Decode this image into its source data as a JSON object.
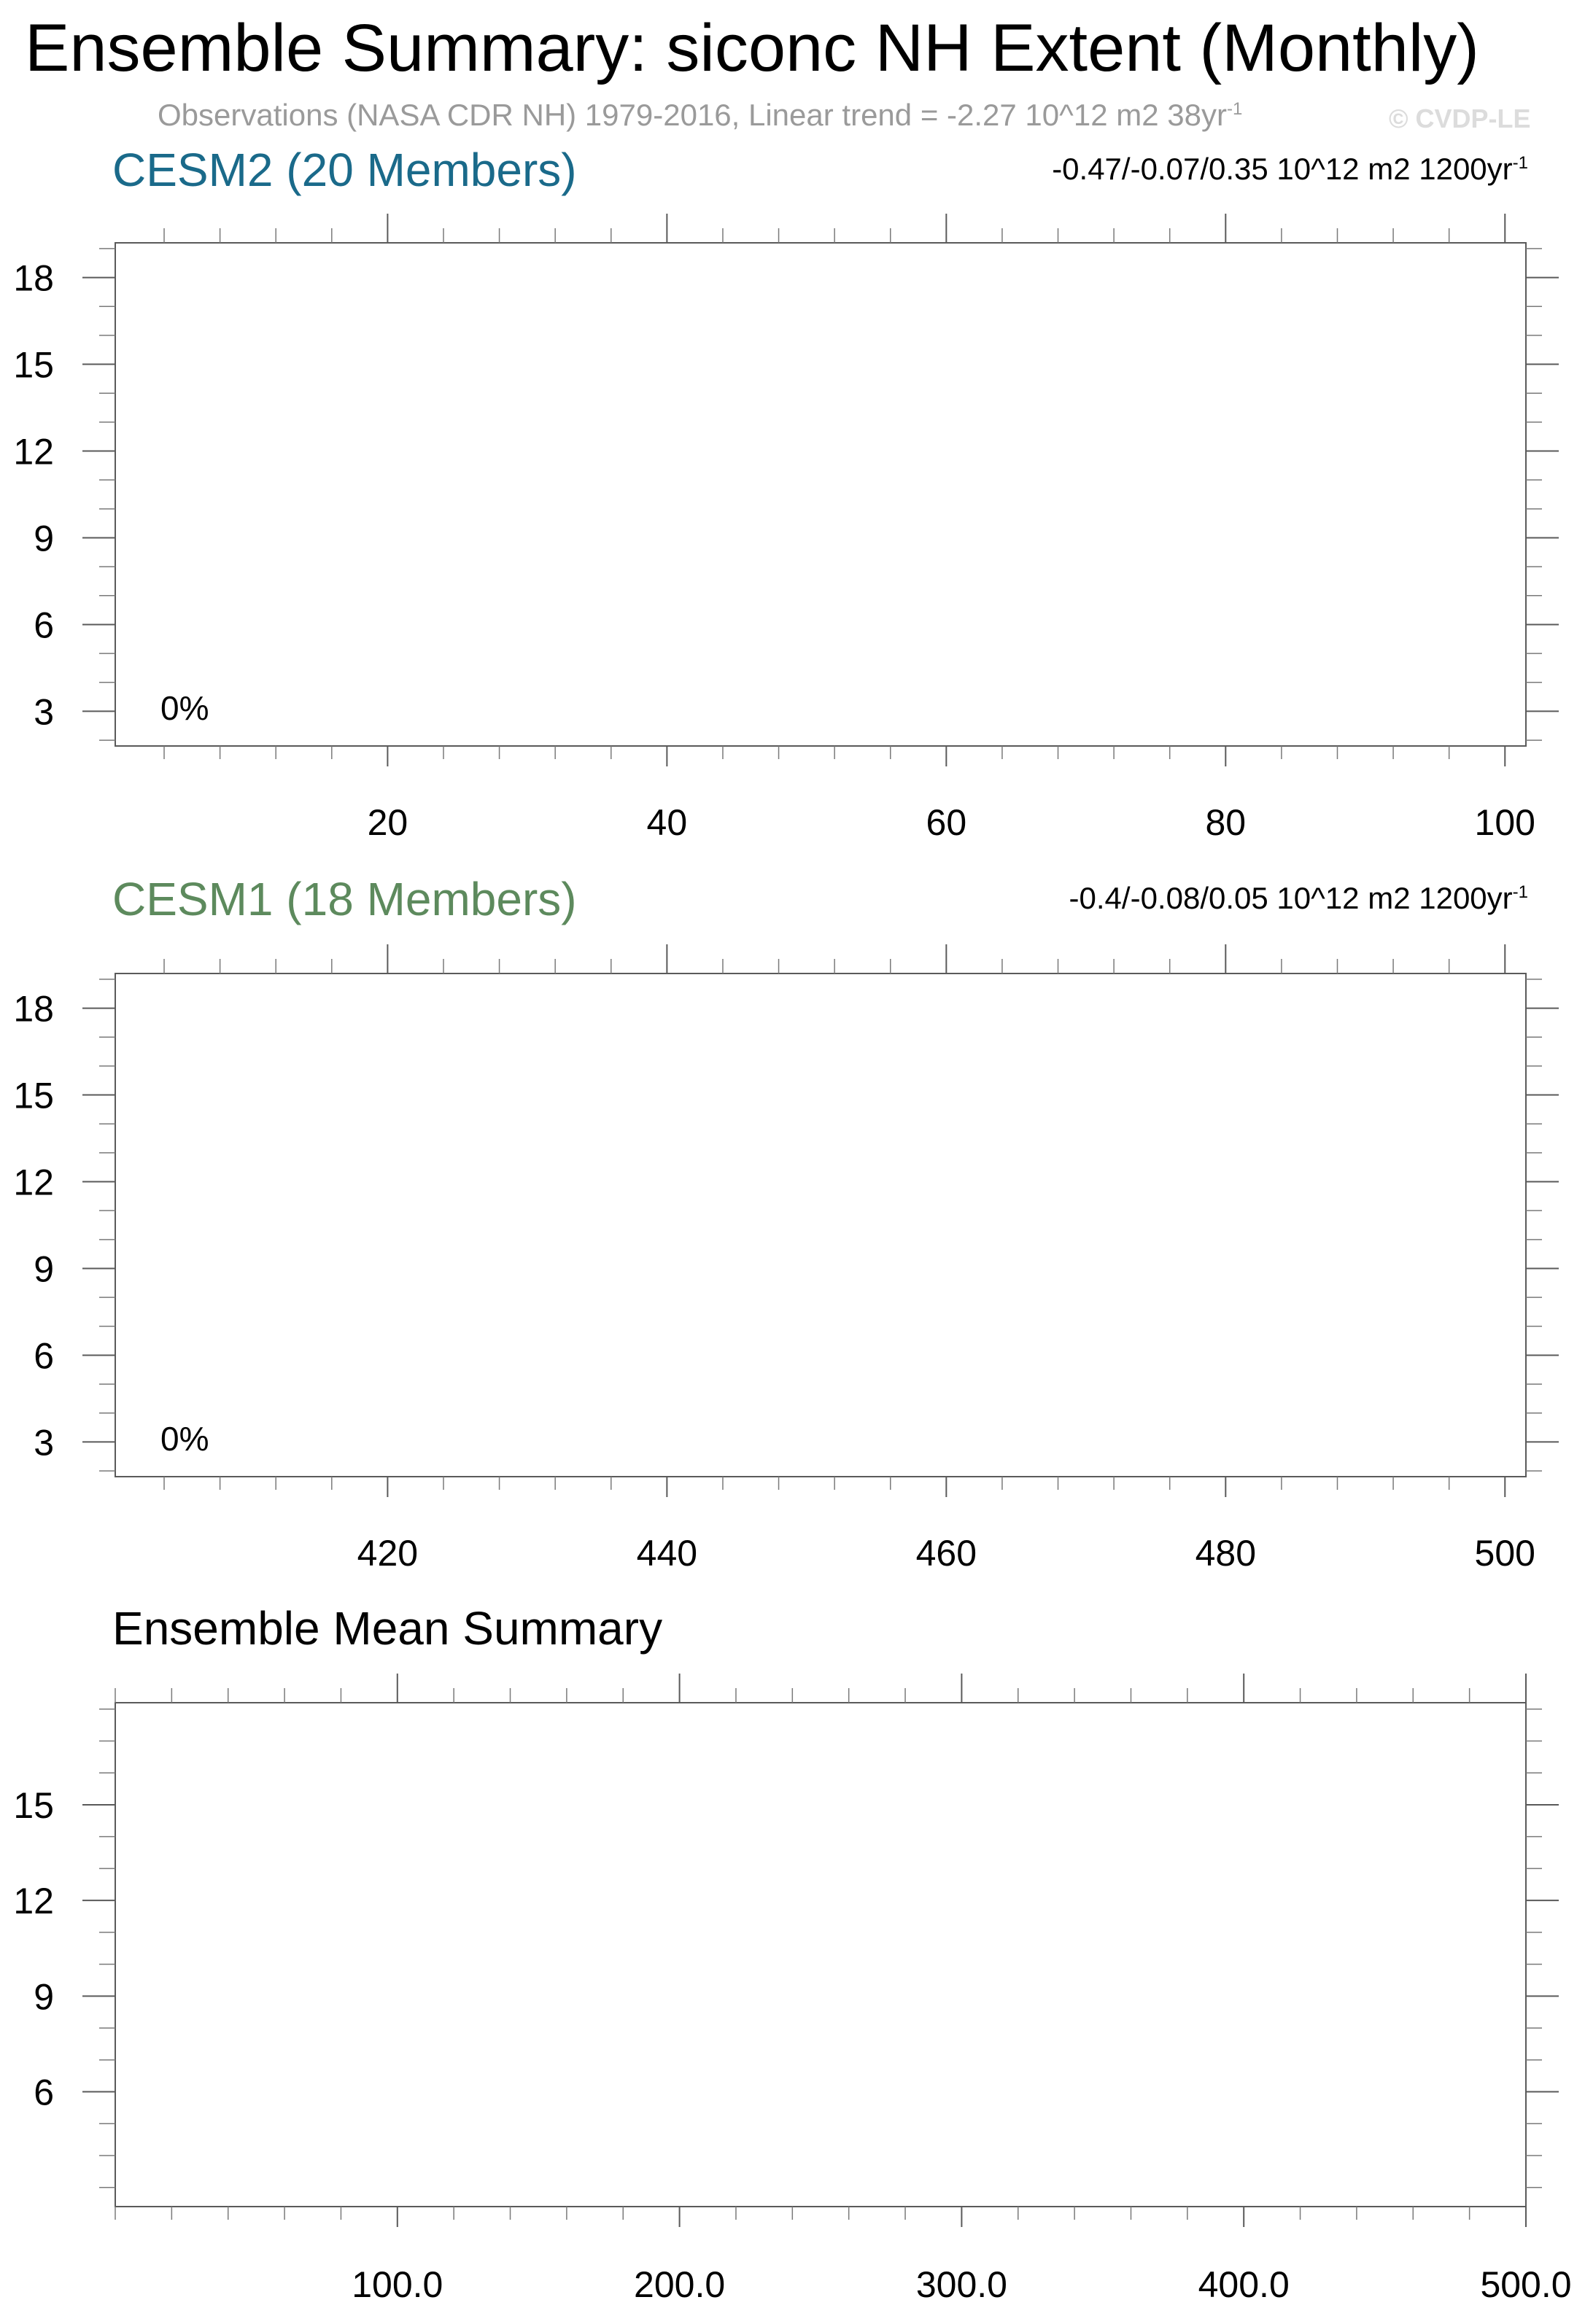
{
  "header": {
    "title": "Ensemble Summary: siconc NH Extent (Monthly)",
    "subtitle": "Observations (NASA CDR NH) 1979-2016, Linear trend = -2.27 10^12 m2 38yr",
    "subtitle_sup": "-1",
    "watermark": "© CVDP-LE"
  },
  "chart_data": [
    {
      "type": "bar",
      "title": "CESM2 (20 Members)",
      "title_color": "#1a6a8a",
      "annotation_right": "-0.47/-0.07/0.35 10^12 m2 1200yr",
      "annotation_right_sup": "-1",
      "inner_label": "0%",
      "values": [],
      "xlim": [
        0.5,
        101.5
      ],
      "ylim": [
        1.8,
        19.2
      ],
      "x_ticks": [
        "20",
        "40",
        "60",
        "80",
        "100"
      ],
      "y_ticks": [
        "18",
        "15",
        "12",
        "9",
        "6",
        "3"
      ]
    },
    {
      "type": "bar",
      "title": "CESM1 (18 Members)",
      "title_color": "#5d8a5d",
      "annotation_right": "-0.4/-0.08/0.05 10^12 m2 1200yr",
      "annotation_right_sup": "-1",
      "inner_label": "0%",
      "values": [],
      "xlim": [
        400.5,
        501.5
      ],
      "ylim": [
        1.8,
        19.2
      ],
      "x_ticks": [
        "420",
        "440",
        "460",
        "480",
        "500"
      ],
      "y_ticks": [
        "18",
        "15",
        "12",
        "9",
        "6",
        "3"
      ]
    },
    {
      "type": "bar",
      "title": "Ensemble Mean Summary",
      "title_color": "#000000",
      "values": [],
      "xlim": [
        0,
        500
      ],
      "ylim": [
        2.4,
        18.2
      ],
      "x_ticks": [
        "100.0",
        "200.0",
        "300.0",
        "400.0",
        "500.0"
      ],
      "y_ticks": [
        "15",
        "12",
        "9",
        "6"
      ]
    }
  ]
}
